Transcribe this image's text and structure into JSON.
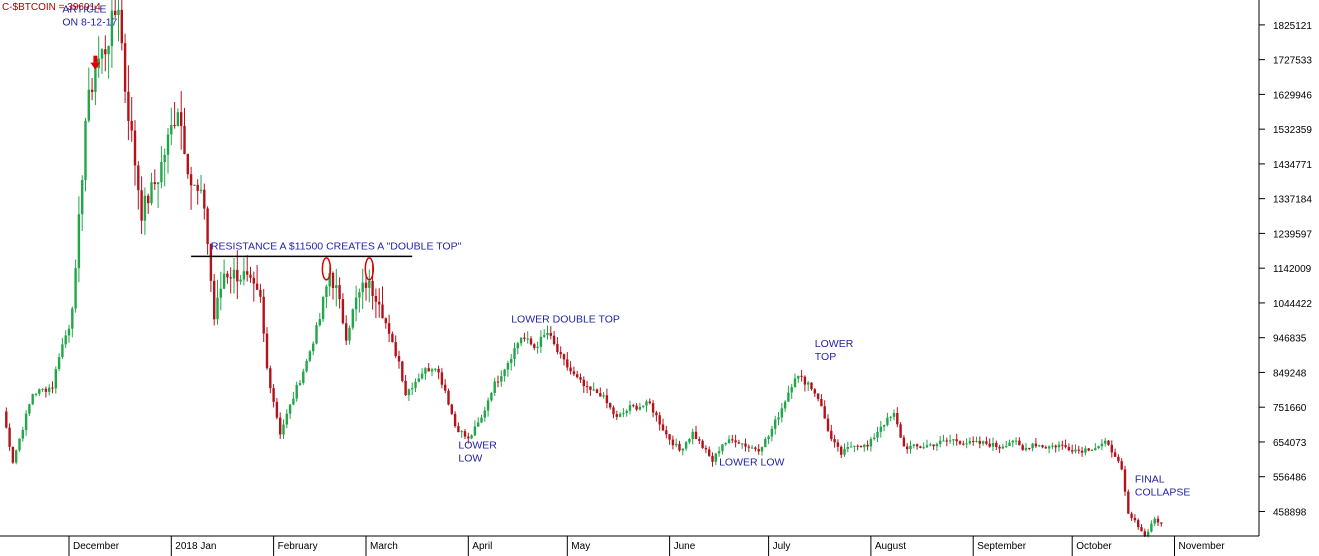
{
  "colors": {
    "up": "#22a64a",
    "down": "#b4121b",
    "annotation": "#1f1fa8",
    "arrow": "#e00000",
    "circle": "#e00000",
    "title": "#b20000"
  },
  "chart_data": {
    "type": "candlestick",
    "title": "C-$BTCOIN = 396914",
    "ylim": [
      390000,
      1895000
    ],
    "grid": false,
    "y_ticks": [
      "1825121",
      "1727533",
      "1629946",
      "1532359",
      "1434771",
      "1337184",
      "1239597",
      "1142009",
      "1044422",
      "946835",
      "849248",
      "751660",
      "654073",
      "556486",
      "458898"
    ],
    "x_ticks": [
      {
        "label": "December",
        "day": 20
      },
      {
        "label": "2018 Jan",
        "day": 51
      },
      {
        "label": "February",
        "day": 82
      },
      {
        "label": "March",
        "day": 110
      },
      {
        "label": "April",
        "day": 141
      },
      {
        "label": "May",
        "day": 171
      },
      {
        "label": "June",
        "day": 202
      },
      {
        "label": "July",
        "day": 232
      },
      {
        "label": "August",
        "day": 263
      },
      {
        "label": "September",
        "day": 294
      },
      {
        "label": "October",
        "day": 324
      },
      {
        "label": "November",
        "day": 355
      }
    ],
    "resistance": {
      "value": 1175000,
      "from_day": 57,
      "to_day": 124
    },
    "annotations": [
      {
        "lines": [
          "ARTICLE",
          "ON 8-12-17"
        ],
        "day": 18,
        "value": 1860000,
        "name": "annotation-article"
      },
      {
        "lines": [
          "RESISTANCE A $11500 CREATES A \"DOUBLE TOP\""
        ],
        "day": 63,
        "value": 1195000,
        "name": "annotation-resistance"
      },
      {
        "lines": [
          "LOWER DOUBLE TOP"
        ],
        "day": 154,
        "value": 990000,
        "name": "annotation-lower-double-top"
      },
      {
        "lines": [
          "LOWER",
          "LOW"
        ],
        "day": 138,
        "value": 635000,
        "name": "annotation-lower-low-1"
      },
      {
        "lines": [
          "LOWER LOW"
        ],
        "day": 217,
        "value": 588000,
        "name": "annotation-lower-low-2"
      },
      {
        "lines": [
          "LOWER",
          "TOP"
        ],
        "day": 246,
        "value": 920000,
        "name": "annotation-lower-top"
      },
      {
        "lines": [
          "FINAL",
          "COLLAPSE"
        ],
        "day": 343,
        "value": 540000,
        "name": "annotation-final-collapse"
      }
    ],
    "article_arrow": {
      "day": 28,
      "value": 1705000
    },
    "circles": [
      {
        "day": 98,
        "value": 1140000
      },
      {
        "day": 111,
        "value": 1140000
      }
    ],
    "anchors": [
      [
        0,
        740000
      ],
      [
        3,
        600000
      ],
      [
        9,
        790000
      ],
      [
        15,
        810000
      ],
      [
        17,
        900000
      ],
      [
        20,
        980000
      ],
      [
        22,
        1120000
      ],
      [
        25,
        1560000
      ],
      [
        28,
        1710000
      ],
      [
        31,
        1760000
      ],
      [
        35,
        1890000
      ],
      [
        37,
        1650000
      ],
      [
        42,
        1300000
      ],
      [
        47,
        1400000
      ],
      [
        50,
        1500000
      ],
      [
        53,
        1600000
      ],
      [
        57,
        1380000
      ],
      [
        61,
        1320000
      ],
      [
        64,
        1000000
      ],
      [
        67,
        1130000
      ],
      [
        73,
        1120000
      ],
      [
        78,
        1050000
      ],
      [
        80,
        860000
      ],
      [
        84,
        680000
      ],
      [
        88,
        780000
      ],
      [
        92,
        880000
      ],
      [
        96,
        1000000
      ],
      [
        99,
        1130000
      ],
      [
        101,
        1080000
      ],
      [
        104,
        950000
      ],
      [
        107,
        1050000
      ],
      [
        110,
        1100000
      ],
      [
        114,
        1060000
      ],
      [
        117,
        950000
      ],
      [
        120,
        880000
      ],
      [
        122,
        790000
      ],
      [
        127,
        850000
      ],
      [
        131,
        870000
      ],
      [
        134,
        800000
      ],
      [
        137,
        700000
      ],
      [
        141,
        660000
      ],
      [
        145,
        720000
      ],
      [
        148,
        800000
      ],
      [
        153,
        880000
      ],
      [
        157,
        950000
      ],
      [
        161,
        920000
      ],
      [
        165,
        960000
      ],
      [
        169,
        890000
      ],
      [
        173,
        840000
      ],
      [
        177,
        800000
      ],
      [
        181,
        790000
      ],
      [
        186,
        720000
      ],
      [
        190,
        750000
      ],
      [
        196,
        760000
      ],
      [
        201,
        675000
      ],
      [
        205,
        630000
      ],
      [
        209,
        680000
      ],
      [
        212,
        640000
      ],
      [
        215,
        600000
      ],
      [
        218,
        650000
      ],
      [
        222,
        660000
      ],
      [
        226,
        640000
      ],
      [
        229,
        635000
      ],
      [
        232,
        670000
      ],
      [
        236,
        750000
      ],
      [
        240,
        840000
      ],
      [
        244,
        820000
      ],
      [
        247,
        780000
      ],
      [
        251,
        660000
      ],
      [
        254,
        620000
      ],
      [
        258,
        650000
      ],
      [
        262,
        640000
      ],
      [
        266,
        700000
      ],
      [
        270,
        730000
      ],
      [
        273,
        640000
      ],
      [
        278,
        640000
      ],
      [
        283,
        650000
      ],
      [
        288,
        660000
      ],
      [
        293,
        650000
      ],
      [
        298,
        650000
      ],
      [
        302,
        640000
      ],
      [
        306,
        660000
      ],
      [
        309,
        630000
      ],
      [
        312,
        650000
      ],
      [
        316,
        640000
      ],
      [
        320,
        645000
      ],
      [
        326,
        630000
      ],
      [
        331,
        640000
      ],
      [
        334,
        650000
      ],
      [
        337,
        620000
      ],
      [
        339,
        570000
      ],
      [
        341,
        450000
      ],
      [
        344,
        420000
      ],
      [
        346,
        390000
      ],
      [
        349,
        440000
      ],
      [
        351,
        420000
      ]
    ]
  }
}
